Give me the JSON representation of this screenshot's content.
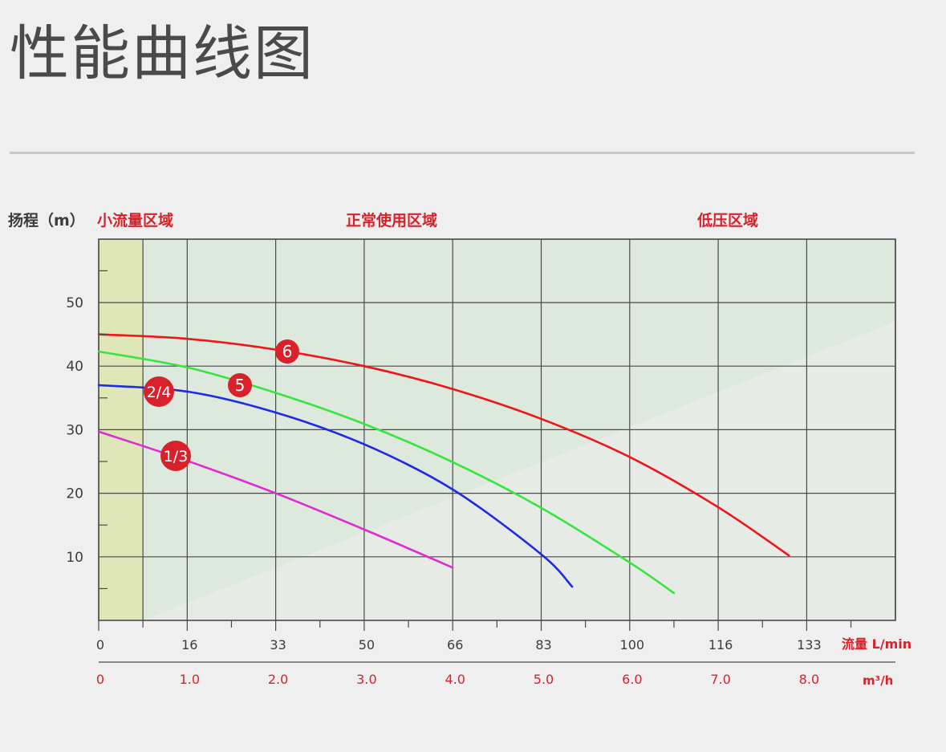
{
  "page": {
    "title": "性能曲线图"
  },
  "chart_data": {
    "type": "line",
    "ylabel": "扬程（m）",
    "xlabel": "流量 L/min",
    "x2label": "m³/h",
    "ylim": [
      0,
      60
    ],
    "xlim_m3h": [
      0,
      9
    ],
    "y_ticks": [
      10,
      20,
      30,
      40,
      50
    ],
    "x_ticks_lmin": [
      "0",
      "16",
      "33",
      "50",
      "66",
      "83",
      "100",
      "116",
      "133"
    ],
    "x_ticks_m3h": [
      "0",
      "1.0",
      "2.0",
      "3.0",
      "4.0",
      "5.0",
      "6.0",
      "7.0",
      "8.0"
    ],
    "zones": [
      {
        "label": "小流量区域",
        "from_m3h": 0,
        "to_m3h": 0.5,
        "color": "#dfe6b8"
      },
      {
        "label": "正常使用区域",
        "color": "#dde9dc"
      },
      {
        "label": "低压区域",
        "color": "#dde9dc"
      }
    ],
    "colors": {
      "accent_red": "#d8212b",
      "zone_small_flow": "#dfe6b8",
      "zone_normal": "#dde9dc"
    },
    "series": [
      {
        "name": "6",
        "color": "#f0151a",
        "x": [
          0,
          1.0,
          2.0,
          3.0,
          4.0,
          5.0,
          6.0,
          7.0,
          7.8
        ],
        "y": [
          45,
          44.3,
          42.6,
          40.0,
          36.4,
          31.7,
          25.7,
          17.8,
          10.2
        ]
      },
      {
        "name": "5",
        "color": "#37e53f",
        "x": [
          0,
          1.0,
          2.0,
          3.0,
          4.0,
          5.0,
          6.0,
          6.5
        ],
        "y": [
          42.3,
          39.8,
          35.8,
          30.9,
          24.9,
          17.7,
          9.1,
          4.3
        ]
      },
      {
        "name": "2/4",
        "color": "#1f2ae6",
        "x": [
          0,
          1.0,
          2.0,
          3.0,
          4.0,
          5.0,
          5.35
        ],
        "y": [
          37,
          36.0,
          32.7,
          27.7,
          20.6,
          10.4,
          5.3
        ]
      },
      {
        "name": "1/3",
        "color": "#e02ad2",
        "x": [
          0,
          1.0,
          2.0,
          3.0,
          4.0
        ],
        "y": [
          29.7,
          25.1,
          20.0,
          14.3,
          8.3
        ]
      }
    ]
  }
}
